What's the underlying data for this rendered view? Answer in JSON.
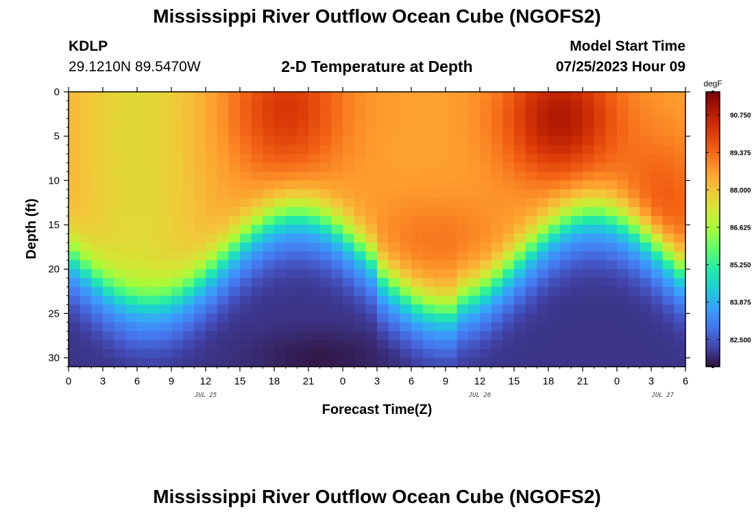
{
  "header": {
    "title": "Mississippi River Outflow Ocean Cube (NGOFS2)",
    "station_id": "KDLP",
    "station_coords": "29.1210N  89.5470W",
    "plot_title": "2-D Temperature at Depth",
    "model_start_label": "Model Start Time",
    "model_start_value": "07/25/2023 Hour 09"
  },
  "footer": {
    "title": "Mississippi River Outflow Ocean Cube (NGOFS2)"
  },
  "chart_data": {
    "type": "heatmap",
    "title": "2-D Temperature at Depth",
    "xlabel": "Forecast Time(Z)",
    "ylabel": "Depth (ft)",
    "x_hours_since_jul25_00": [
      0,
      48
    ],
    "xlim": [
      0,
      54
    ],
    "ylim": [
      31,
      0
    ],
    "x_tick_values": [
      0,
      3,
      6,
      9,
      12,
      15,
      18,
      21,
      24,
      27,
      30,
      33,
      36,
      39,
      42,
      45,
      48,
      51,
      54
    ],
    "x_tick_labels": [
      "0",
      "3",
      "6",
      "9",
      "12",
      "15",
      "18",
      "21",
      "0",
      "3",
      "6",
      "9",
      "12",
      "15",
      "18",
      "21",
      "0",
      "3",
      "6"
    ],
    "day_labels": [
      {
        "label": "JUL 25",
        "hour": 12
      },
      {
        "label": "JUL 26",
        "hour": 36
      },
      {
        "label": "JUL 27",
        "hour": 52
      }
    ],
    "y_tick_values": [
      0,
      5,
      10,
      15,
      20,
      25,
      30
    ],
    "y_tick_labels": [
      "0",
      "5",
      "10",
      "15",
      "20",
      "25",
      "30"
    ],
    "colorbar": {
      "unit": "degF",
      "min": 81.5,
      "max": 91.6,
      "tick_values": [
        82.5,
        83.875,
        85.25,
        86.625,
        88.0,
        89.375,
        90.75
      ],
      "tick_labels": [
        "82.500",
        "83.875",
        "85.250",
        "86.625",
        "88.000",
        "89.375",
        "90.750"
      ],
      "colors": [
        "#30123b",
        "#4145ab",
        "#4675ed",
        "#39a2fc",
        "#1bcfd4",
        "#24eca6",
        "#61fc6c",
        "#a4fc3b",
        "#d1e834",
        "#f3c63a",
        "#fe9b2d",
        "#f36315",
        "#d93806",
        "#b11901",
        "#7a0402"
      ]
    },
    "grid": {
      "columns": 54,
      "rows": 31,
      "description": "temperature (degF) vs forecast hour and depth; warm surface layer, cool bottom, thermocline oscillating between ~14 ft and ~24 ft with a near-daily period"
    }
  }
}
